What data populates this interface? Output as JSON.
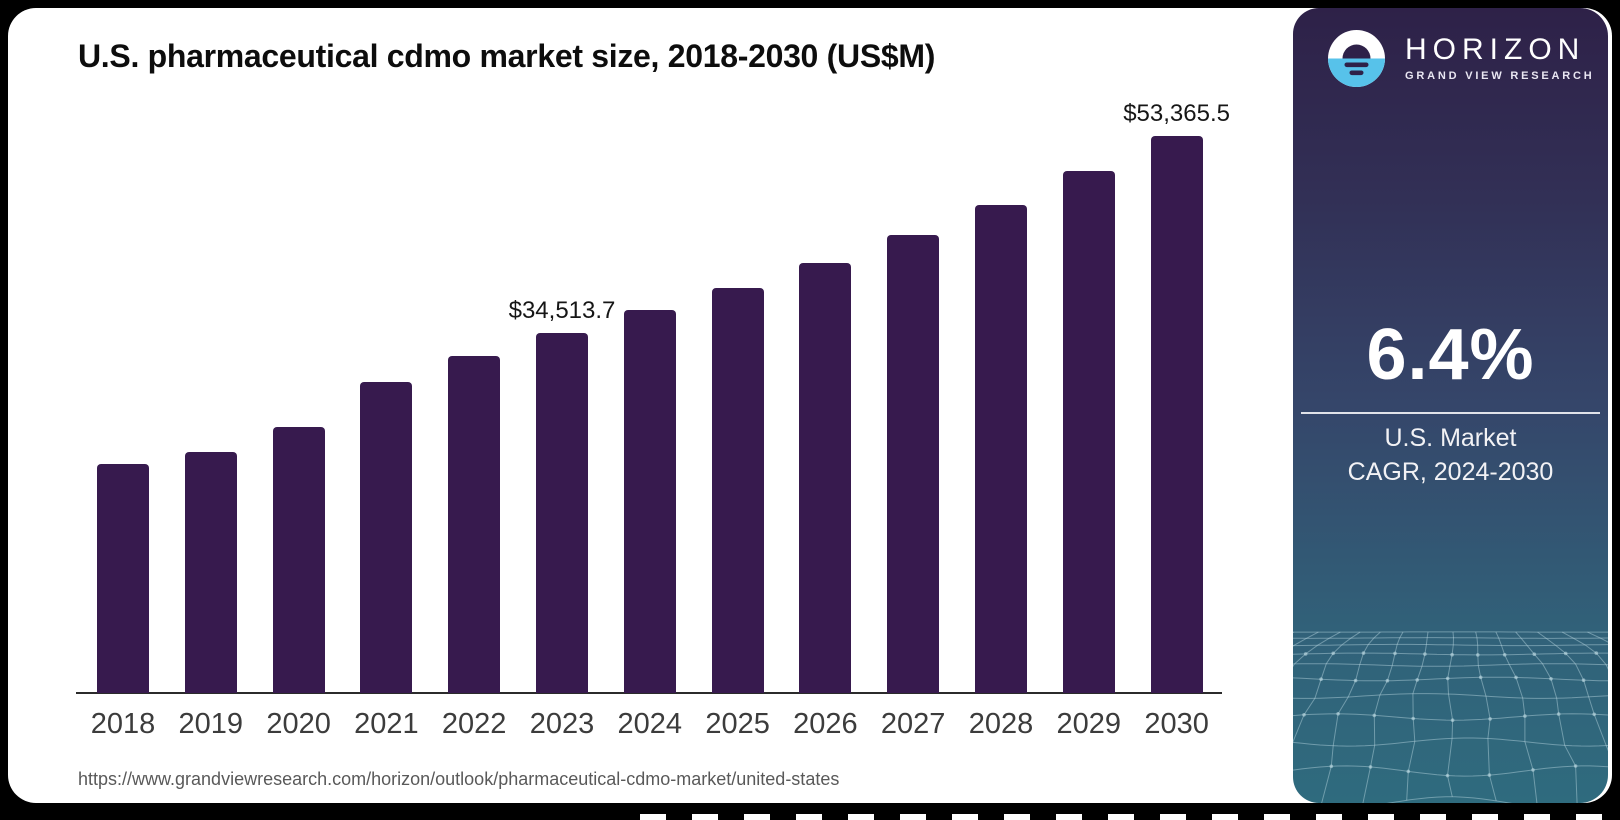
{
  "title": "U.S. pharmaceutical cdmo market size, 2018-2030 (US$M)",
  "source_url": "https://www.grandviewresearch.com/horizon/outlook/pharmaceutical-cdmo-market/united-states",
  "chart_data": {
    "type": "bar",
    "title": "U.S. pharmaceutical cdmo market size, 2018-2030 (US$M)",
    "unit": "US$M",
    "categories": [
      "2018",
      "2019",
      "2020",
      "2021",
      "2022",
      "2023",
      "2024",
      "2025",
      "2026",
      "2027",
      "2028",
      "2029",
      "2030"
    ],
    "values": [
      21950,
      23100,
      25500,
      29800,
      32300,
      34513.7,
      36700,
      38800,
      41200,
      43900,
      46800,
      50000,
      53365.5
    ],
    "annotations": [
      {
        "category": "2023",
        "label": "$34,513.7"
      },
      {
        "category": "2030",
        "label": "$53,365.5"
      }
    ],
    "bar_color": "#371a4e",
    "axis_color": "#2b2b2b",
    "ylim": [
      0,
      56000
    ],
    "grid": "off",
    "legend": "none"
  },
  "sidebar": {
    "logo_brand": "HORIZON",
    "logo_sub": "GRAND VIEW RESEARCH",
    "cagr_value": "6.4%",
    "cagr_line1": "U.S. Market",
    "cagr_line2": "CAGR, 2024-2030",
    "gradient_top": "#2e2148",
    "gradient_bottom": "#2f6b7e",
    "logo_blue": "#57c2ea"
  }
}
